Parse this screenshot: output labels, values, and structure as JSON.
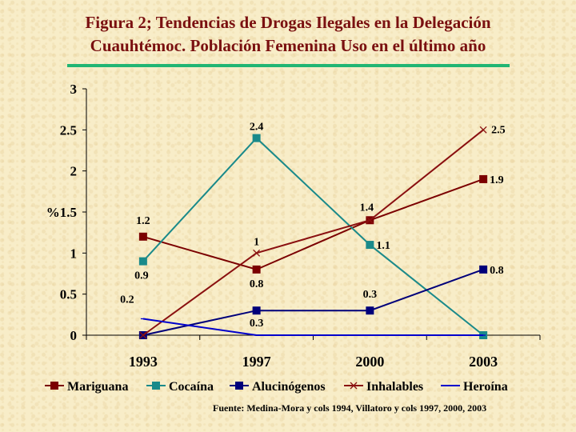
{
  "title": {
    "line1": "Figura 2; Tendencias de Drogas Ilegales en  la Delegación",
    "line2": "Cuauhtémoc. Población Femenina Uso en el último año"
  },
  "source": "Fuente: Medina-Mora y cols 1994, Villatoro y cols 1997, 2000, 2003",
  "colors": {
    "title": "#7a1010",
    "rule": "#22b573",
    "Mariguana": "#7b0000",
    "Cocaína": "#1a8a8a",
    "Alucinógenos": "#00007a",
    "Inhalables": "#8a1010",
    "Heroína": "#0000cc"
  },
  "chart_data": {
    "type": "line",
    "title": "Figura 2; Tendencias de Drogas Ilegales en  la Delegación Cuauhtémoc. Población Femenina Uso en el último año",
    "xlabel": "",
    "ylabel": "%",
    "categories": [
      "1993",
      "1997",
      "2000",
      "2003"
    ],
    "ylim": [
      0,
      3
    ],
    "yticks": [
      "0",
      "0.5",
      "1",
      "1.5",
      "2",
      "2.5",
      "3"
    ],
    "grid": false,
    "legend": "bottom",
    "series": [
      {
        "name": "Mariguana",
        "values": [
          1.2,
          0.8,
          1.4,
          1.9
        ],
        "marker": "square",
        "labels": [
          "1.2",
          "0.8",
          "1.4",
          "1.9"
        ]
      },
      {
        "name": "Cocaína",
        "values": [
          0.9,
          2.4,
          1.1,
          0.0
        ],
        "marker": "square",
        "labels": [
          "0.9",
          "2.4",
          "1.1",
          ""
        ]
      },
      {
        "name": "Alucinógenos",
        "values": [
          0.0,
          0.3,
          0.3,
          0.8
        ],
        "marker": "square",
        "labels": [
          "",
          "0.3",
          "0.3",
          "0.8"
        ]
      },
      {
        "name": "Inhalables",
        "values": [
          0.0,
          1.0,
          1.4,
          2.5
        ],
        "marker": "x",
        "labels": [
          "",
          "1",
          "",
          "2.5"
        ]
      },
      {
        "name": "Heroína",
        "values": [
          0.2,
          0.0,
          0.0,
          0.0
        ],
        "marker": "dash",
        "labels": [
          "0.2",
          "",
          "",
          ""
        ]
      }
    ]
  }
}
